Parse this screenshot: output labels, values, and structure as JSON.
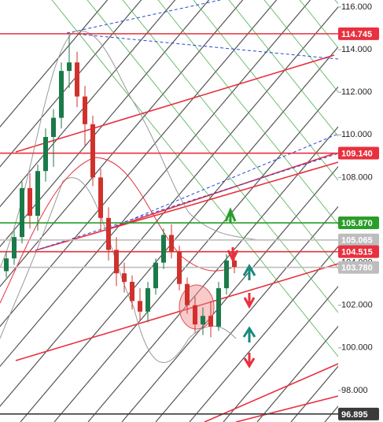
{
  "chart_data": {
    "type": "candlestick",
    "ylim": [
      96.52,
      116.33
    ],
    "yticks": [
      {
        "value": 116,
        "label": "116.000"
      },
      {
        "value": 114,
        "label": "114.000"
      },
      {
        "value": 112,
        "label": "112.000"
      },
      {
        "value": 110,
        "label": "110.000"
      },
      {
        "value": 108,
        "label": "108.000"
      },
      {
        "value": 106,
        "label": "106.000"
      },
      {
        "value": 104,
        "label": "104.000"
      },
      {
        "value": 102,
        "label": "102.000"
      },
      {
        "value": 100,
        "label": "100.000"
      },
      {
        "value": 98,
        "label": "98.000"
      }
    ],
    "price_tags": [
      {
        "value": 114.745,
        "label": "114.745",
        "color": "#e8303e"
      },
      {
        "value": 109.14,
        "label": "109.140",
        "color": "#e8303e"
      },
      {
        "value": 105.87,
        "label": "105.870",
        "color": "#2a9d2a"
      },
      {
        "value": 105.065,
        "label": "105.065",
        "color": "#bdbdbd"
      },
      {
        "value": 104.515,
        "label": "104.515",
        "color": "#e8303e"
      },
      {
        "value": 103.78,
        "label": "103.780",
        "color": "#bdbdbd"
      },
      {
        "value": 96.895,
        "label": "96.895",
        "color": "#3a3a3a"
      }
    ],
    "up_color": "#1b7a4a",
    "down_color": "#d0312d",
    "categories": [
      null,
      null,
      null,
      null,
      null,
      null,
      null,
      null,
      null,
      null,
      null,
      null,
      null,
      null,
      null,
      null,
      null,
      null,
      null,
      null,
      null,
      null,
      null,
      null,
      null,
      null,
      null,
      null,
      null,
      null
    ],
    "open": [
      103.6,
      104.2,
      105.2,
      107.5,
      106.2,
      108.3,
      109.9,
      110.8,
      113.0,
      113.4,
      111.8,
      110.5,
      108.0,
      106.1,
      104.6,
      103.5,
      103.1,
      102.2,
      101.7,
      102.8,
      104.0,
      105.3,
      104.5,
      103.0,
      102.0,
      101.1,
      101.5,
      101.0,
      102.8,
      104.1
    ],
    "high": [
      104.5,
      105.5,
      107.8,
      108.2,
      108.6,
      110.3,
      111.2,
      113.4,
      114.7,
      113.9,
      112.3,
      110.9,
      108.4,
      106.6,
      105.2,
      104.0,
      103.4,
      102.8,
      103.1,
      104.2,
      105.6,
      105.8,
      104.8,
      103.3,
      102.4,
      101.9,
      102.2,
      103.1,
      104.4,
      104.5
    ],
    "low": [
      103.3,
      103.9,
      104.9,
      105.6,
      105.5,
      107.8,
      108.5,
      110.3,
      112.2,
      111.3,
      109.5,
      107.6,
      105.5,
      104.1,
      102.9,
      102.6,
      101.8,
      101.3,
      101.2,
      102.5,
      103.7,
      104.2,
      102.7,
      101.6,
      100.7,
      100.6,
      100.5,
      100.8,
      102.5,
      103.5
    ],
    "close": [
      104.2,
      105.2,
      107.5,
      106.2,
      108.3,
      109.9,
      110.8,
      113.0,
      113.4,
      111.8,
      110.5,
      108.0,
      106.1,
      104.6,
      103.5,
      103.1,
      102.2,
      101.7,
      102.8,
      104.0,
      105.3,
      104.5,
      103.0,
      102.0,
      101.1,
      101.5,
      101.0,
      102.8,
      104.1,
      103.8
    ]
  }
}
